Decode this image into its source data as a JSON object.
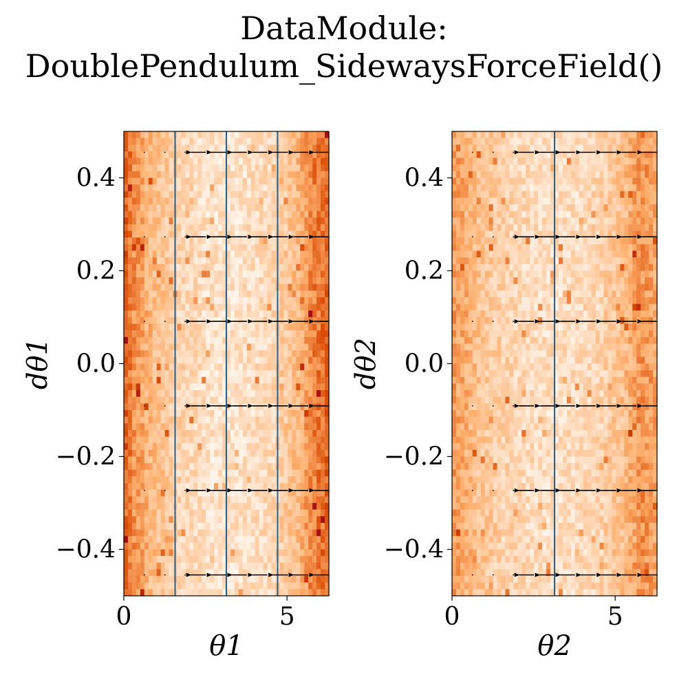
{
  "figure": {
    "title_line1": "DataModule:",
    "title_line2": "DoublePendulum_SidewaysForceField()"
  },
  "colors": {
    "heat_low": "#fff5eb",
    "heat_mid": "#fdae6b",
    "heat_high": "#d94801",
    "heat_max": "#a50f15",
    "vline": "#1f5f8b",
    "arrow": "#000000"
  },
  "chart_data": [
    {
      "type": "heatmap",
      "title": "",
      "xlabel": "θ1",
      "ylabel": "dθ1",
      "xlim": [
        0,
        6.283
      ],
      "ylim": [
        -0.5,
        0.5
      ],
      "x_ticks": [
        0,
        5
      ],
      "y_ticks": [
        -0.4,
        -0.2,
        0.0,
        0.2,
        0.4
      ],
      "y_tick_labels": [
        "−0.4",
        "−0.2",
        "0.0",
        "0.2",
        "0.4"
      ],
      "vertical_lines_x": [
        1.571,
        3.142,
        4.712
      ],
      "density_profile": {
        "description_x": [
          0.0,
          0.3,
          0.8,
          1.6,
          2.6,
          3.5,
          4.5,
          5.3,
          5.8,
          6.283
        ],
        "intensity": [
          0.75,
          0.55,
          0.38,
          0.22,
          0.12,
          0.12,
          0.18,
          0.35,
          0.6,
          0.7
        ]
      },
      "quiver": {
        "x": [
          0.63,
          1.26,
          1.88,
          2.51,
          3.14,
          3.77,
          4.4,
          5.03,
          5.65,
          6.28
        ],
        "y": [
          -0.455,
          -0.273,
          -0.091,
          0.091,
          0.273,
          0.455
        ],
        "u": [
          0.0,
          0.0,
          0.0,
          -0.62,
          -0.62,
          -0.62,
          -0.62,
          -0.62,
          -0.62,
          -0.62
        ]
      }
    },
    {
      "type": "heatmap",
      "title": "",
      "xlabel": "θ2",
      "ylabel": "dθ2",
      "xlim": [
        0,
        6.283
      ],
      "ylim": [
        -0.5,
        0.5
      ],
      "x_ticks": [
        0,
        5
      ],
      "y_ticks": [
        -0.4,
        -0.2,
        0.0,
        0.2,
        0.4
      ],
      "y_tick_labels": [
        "−0.4",
        "−0.2",
        "0.0",
        "0.2",
        "0.4"
      ],
      "vertical_lines_x": [
        3.142
      ],
      "density_profile": {
        "description_x": [
          0.0,
          0.3,
          0.8,
          1.6,
          2.6,
          3.5,
          4.5,
          5.3,
          5.8,
          6.283
        ],
        "intensity": [
          0.5,
          0.45,
          0.32,
          0.22,
          0.15,
          0.15,
          0.2,
          0.35,
          0.55,
          0.45
        ]
      },
      "quiver": {
        "x": [
          0.63,
          1.26,
          1.88,
          2.51,
          3.14,
          3.77,
          4.4,
          5.03,
          5.65,
          6.28
        ],
        "y": [
          -0.455,
          -0.273,
          -0.091,
          0.091,
          0.273,
          0.455
        ],
        "u": [
          0.0,
          0.0,
          0.0,
          -0.62,
          -0.62,
          -0.62,
          -0.62,
          -0.62,
          -0.62,
          -0.62
        ]
      }
    }
  ]
}
